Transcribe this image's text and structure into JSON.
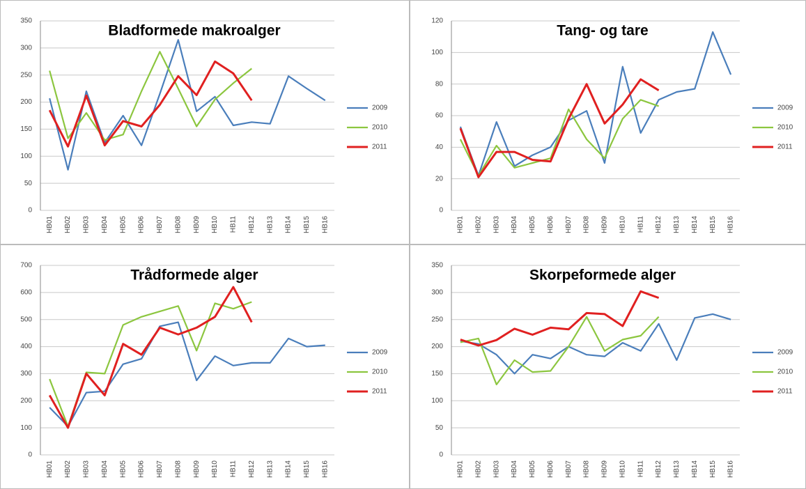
{
  "chart_data": [
    {
      "type": "line",
      "title": "Bladformede makroalger",
      "categories": [
        "HB01",
        "HB02",
        "HB03",
        "HB04",
        "HB05",
        "HB06",
        "HB07",
        "HB08",
        "HB09",
        "HB10",
        "HB11",
        "HB12",
        "HB13",
        "HB14",
        "HB15",
        "HB16"
      ],
      "series": [
        {
          "name": "2009",
          "color": "#4a7ebb",
          "values": [
            207,
            75,
            220,
            125,
            175,
            120,
            215,
            315,
            183,
            210,
            157,
            163,
            160,
            248,
            225,
            203
          ]
        },
        {
          "name": "2010",
          "color": "#8cc63f",
          "values": [
            258,
            133,
            180,
            130,
            140,
            220,
            293,
            225,
            155,
            205,
            235,
            262,
            null,
            null,
            null,
            null
          ]
        },
        {
          "name": "2011",
          "color": "#e02020",
          "values": [
            185,
            118,
            212,
            120,
            165,
            155,
            195,
            248,
            213,
            275,
            253,
            203,
            null,
            null,
            null,
            null
          ]
        }
      ],
      "ylim": [
        0,
        350
      ],
      "yticks": [
        0,
        50,
        100,
        150,
        200,
        250,
        300,
        350
      ],
      "grid": true
    },
    {
      "type": "line",
      "title": "Tang- og tare",
      "categories": [
        "HB01",
        "HB02",
        "HB03",
        "HB04",
        "HB05",
        "HB06",
        "HB07",
        "HB08",
        "HB09",
        "HB10",
        "HB11",
        "HB12",
        "HB13",
        "HB14",
        "HB15",
        "HB16"
      ],
      "series": [
        {
          "name": "2009",
          "color": "#4a7ebb",
          "values": [
            53,
            22,
            56,
            28,
            35,
            40,
            57,
            63,
            30,
            91,
            49,
            70,
            75,
            77,
            113,
            86
          ]
        },
        {
          "name": "2010",
          "color": "#8cc63f",
          "values": [
            45,
            22,
            41,
            27,
            30,
            33,
            64,
            45,
            33,
            58,
            70,
            66,
            null,
            null,
            null,
            null
          ]
        },
        {
          "name": "2011",
          "color": "#e02020",
          "values": [
            52,
            21,
            37,
            37,
            32,
            31,
            58,
            80,
            55,
            67,
            83,
            76,
            null,
            null,
            null,
            null
          ]
        }
      ],
      "ylim": [
        0,
        120
      ],
      "yticks": [
        0,
        20,
        40,
        60,
        80,
        100,
        120
      ],
      "grid": true
    },
    {
      "type": "line",
      "title": "Trådformede alger",
      "categories": [
        "HB01",
        "HB02",
        "HB03",
        "HB04",
        "HB05",
        "HB06",
        "HB07",
        "HB08",
        "HB09",
        "HB10",
        "HB11",
        "HB12",
        "HB13",
        "HB14",
        "HB15",
        "HB16"
      ],
      "series": [
        {
          "name": "2009",
          "color": "#4a7ebb",
          "values": [
            175,
            105,
            230,
            235,
            335,
            355,
            475,
            490,
            275,
            365,
            330,
            340,
            340,
            430,
            400,
            405
          ]
        },
        {
          "name": "2010",
          "color": "#8cc63f",
          "values": [
            280,
            105,
            305,
            300,
            480,
            510,
            530,
            550,
            385,
            560,
            540,
            565,
            null,
            null,
            null,
            null
          ]
        },
        {
          "name": "2011",
          "color": "#e02020",
          "values": [
            220,
            100,
            300,
            220,
            410,
            370,
            470,
            445,
            470,
            510,
            620,
            490,
            null,
            null,
            null,
            null
          ]
        }
      ],
      "ylim": [
        0,
        700
      ],
      "yticks": [
        0,
        100,
        200,
        300,
        400,
        500,
        600,
        700
      ],
      "grid": true
    },
    {
      "type": "line",
      "title": "Skorpeformede alger",
      "categories": [
        "HB01",
        "HB02",
        "HB03",
        "HB04",
        "HB05",
        "HB06",
        "HB07",
        "HB08",
        "HB09",
        "HB10",
        "HB11",
        "HB12",
        "HB13",
        "HB14",
        "HB15",
        "HB16"
      ],
      "series": [
        {
          "name": "2009",
          "color": "#4a7ebb",
          "values": [
            210,
            205,
            185,
            150,
            185,
            178,
            200,
            185,
            182,
            207,
            192,
            242,
            175,
            253,
            260,
            250
          ]
        },
        {
          "name": "2010",
          "color": "#8cc63f",
          "values": [
            208,
            215,
            130,
            175,
            153,
            155,
            200,
            255,
            192,
            213,
            220,
            255,
            null,
            null,
            null,
            null
          ]
        },
        {
          "name": "2011",
          "color": "#e02020",
          "values": [
            213,
            202,
            212,
            233,
            222,
            235,
            232,
            262,
            260,
            238,
            302,
            290,
            null,
            null,
            null,
            null
          ]
        }
      ],
      "ylim": [
        0,
        350
      ],
      "yticks": [
        0,
        50,
        100,
        150,
        200,
        250,
        300,
        350
      ],
      "grid": true
    }
  ]
}
